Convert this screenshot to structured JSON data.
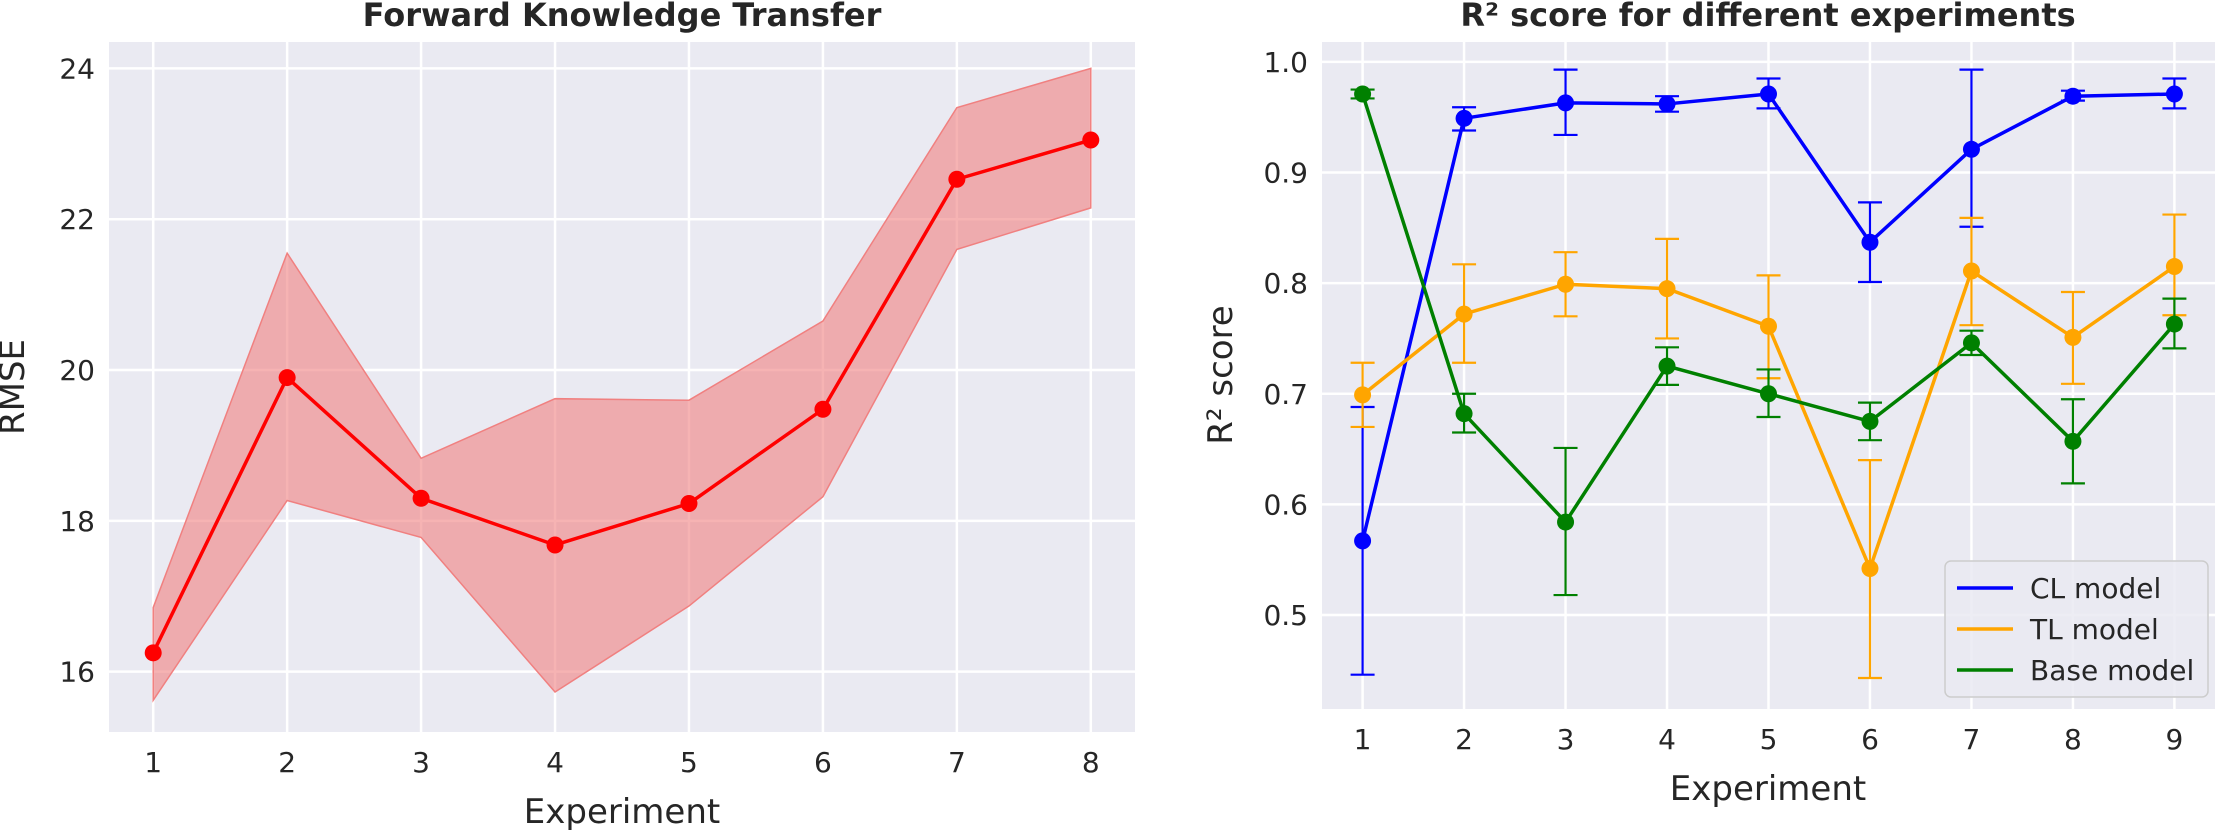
{
  "chart_data": [
    {
      "type": "line",
      "title": "Forward Knowledge Transfer",
      "xlabel": "Experiment",
      "ylabel": "RMSE",
      "x": [
        1,
        2,
        3,
        4,
        5,
        6,
        7,
        8
      ],
      "xlim": [
        0.67,
        8.33
      ],
      "ylim": [
        15.2,
        24.35
      ],
      "yticks": [
        16,
        18,
        20,
        22,
        24
      ],
      "grid": true,
      "series": [
        {
          "color": "#ff0000",
          "band_color": "#f08080",
          "values": [
            16.25,
            19.9,
            18.3,
            17.68,
            18.23,
            19.48,
            22.53,
            23.05
          ],
          "band_low": [
            15.62,
            18.27,
            17.78,
            15.73,
            16.87,
            18.32,
            21.6,
            22.15
          ],
          "band_high": [
            16.85,
            21.55,
            18.83,
            19.62,
            19.6,
            20.65,
            23.48,
            24.0
          ]
        }
      ]
    },
    {
      "type": "line",
      "title": "R² score for different experiments",
      "xlabel": "Experiment",
      "ylabel": "R² score",
      "x": [
        1,
        2,
        3,
        4,
        5,
        6,
        7,
        8,
        9
      ],
      "xlim": [
        0.6,
        9.4
      ],
      "ylim": [
        0.415,
        1.018
      ],
      "yticks": [
        0.5,
        0.6,
        0.7,
        0.8,
        0.9,
        1.0
      ],
      "grid": true,
      "legend": "bottom-right",
      "series": [
        {
          "name": "CL model",
          "color": "#0000ff",
          "values": [
            0.567,
            0.949,
            0.963,
            0.962,
            0.971,
            0.837,
            0.921,
            0.969,
            0.971
          ],
          "err_low": [
            0.446,
            0.938,
            0.934,
            0.955,
            0.958,
            0.801,
            0.851,
            0.965,
            0.958
          ],
          "err_high": [
            0.688,
            0.959,
            0.993,
            0.969,
            0.985,
            0.873,
            0.993,
            0.974,
            0.985
          ]
        },
        {
          "name": "TL model",
          "color": "#ffa500",
          "values": [
            0.699,
            0.772,
            0.799,
            0.795,
            0.761,
            0.542,
            0.811,
            0.751,
            0.815
          ],
          "err_low": [
            0.67,
            0.728,
            0.77,
            0.75,
            0.714,
            0.443,
            0.762,
            0.709,
            0.771
          ],
          "err_high": [
            0.728,
            0.817,
            0.828,
            0.84,
            0.807,
            0.64,
            0.859,
            0.792,
            0.862
          ]
        },
        {
          "name": "Base model",
          "color": "#008000",
          "values": [
            0.971,
            0.682,
            0.584,
            0.725,
            0.7,
            0.675,
            0.746,
            0.657,
            0.763
          ],
          "err_low": [
            0.967,
            0.665,
            0.518,
            0.708,
            0.679,
            0.658,
            0.735,
            0.619,
            0.741
          ],
          "err_high": [
            0.975,
            0.7,
            0.651,
            0.742,
            0.722,
            0.692,
            0.757,
            0.695,
            0.786
          ]
        }
      ]
    }
  ]
}
